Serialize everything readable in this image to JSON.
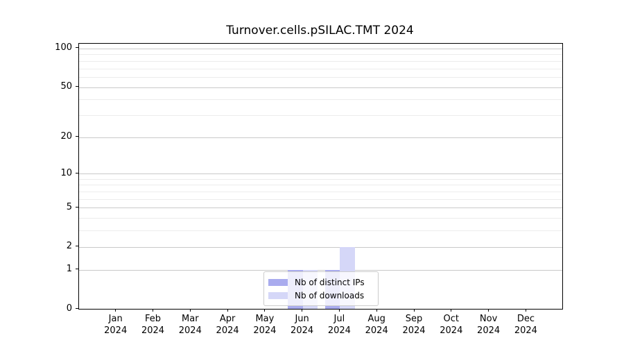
{
  "chart_data": {
    "type": "bar",
    "title": "Turnover.cells.pSILAC.TMT 2024",
    "categories": [
      "Jan",
      "Feb",
      "Mar",
      "Apr",
      "May",
      "Jun",
      "Jul",
      "Aug",
      "Sep",
      "Oct",
      "Nov",
      "Dec"
    ],
    "year": "2024",
    "series": [
      {
        "name": "Nb of distinct IPs",
        "color": "#a9abee",
        "values": [
          0,
          0,
          0,
          0,
          0,
          1,
          1,
          0,
          0,
          0,
          0,
          0
        ]
      },
      {
        "name": "Nb of downloads",
        "color": "#d5d7f8",
        "values": [
          0,
          0,
          0,
          0,
          0,
          1,
          2,
          0,
          0,
          0,
          0,
          0
        ]
      }
    ],
    "y_scale": "log1p",
    "ylim": [
      0,
      109
    ],
    "y_ticks": [
      0,
      1,
      2,
      5,
      10,
      20,
      50,
      100
    ],
    "y_minor_gridlines": [
      3,
      4,
      6,
      7,
      8,
      9,
      30,
      40,
      60,
      70,
      80,
      90
    ],
    "grid": "horizontal",
    "legend_position": "lower center",
    "colors": {
      "grid_major": "#c9c9c9",
      "grid_minor": "#ececec",
      "spine": "#000000",
      "background": "#ffffff"
    }
  }
}
